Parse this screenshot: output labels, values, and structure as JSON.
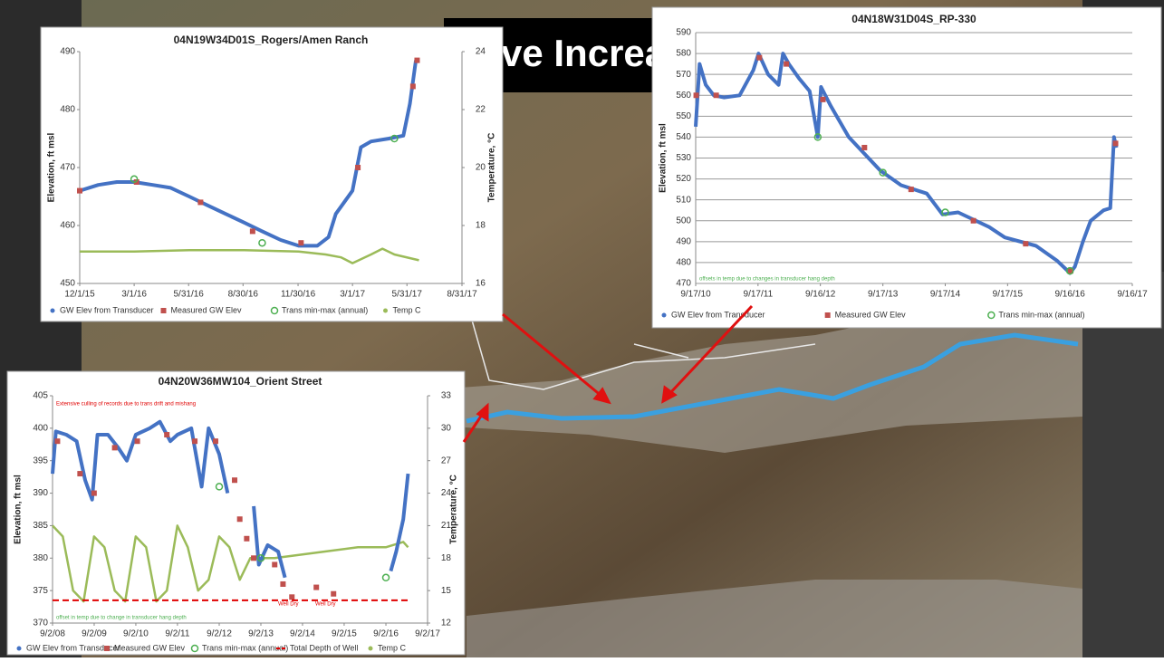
{
  "slide_title": "ve Increa",
  "chart_data": [
    {
      "type": "line",
      "title": "04N19W34D01S_Rogers/Amen Ranch",
      "ylabel": "Elevation, ft  msl",
      "y2label": "Temperature, °C",
      "xlim": [
        "2015-12-01",
        "2017-08-31"
      ],
      "xticks": [
        {
          "value": "2015-12-01",
          "label": "12/1/15"
        },
        {
          "value": "2016-03-01",
          "label": "3/1/16"
        },
        {
          "value": "2016-05-31",
          "label": "5/31/16"
        },
        {
          "value": "2016-08-30",
          "label": "8/30/16"
        },
        {
          "value": "2016-11-30",
          "label": "11/30/16"
        },
        {
          "value": "2017-03-01",
          "label": "3/1/17"
        },
        {
          "value": "2017-05-31",
          "label": "5/31/17"
        },
        {
          "value": "2017-08-31",
          "label": "8/31/17"
        }
      ],
      "ylim": [
        450,
        490
      ],
      "yticks": [
        450,
        460,
        470,
        480,
        490
      ],
      "y2lim": [
        16,
        24
      ],
      "y2ticks": [
        16,
        18,
        20,
        22,
        24
      ],
      "grid": false,
      "series": [
        {
          "name": "GW Elev from Transducer",
          "color": "#4472c4",
          "marker": "line",
          "x": [
            "2015-12-01",
            "2016-01-01",
            "2016-02-01",
            "2016-03-01",
            "2016-04-01",
            "2016-05-01",
            "2016-06-01",
            "2016-07-01",
            "2016-08-01",
            "2016-09-01",
            "2016-10-01",
            "2016-11-01",
            "2016-12-01",
            "2017-01-01",
            "2017-01-20",
            "2017-02-01",
            "2017-02-15",
            "2017-03-01",
            "2017-03-15",
            "2017-04-01",
            "2017-05-01",
            "2017-05-25",
            "2017-06-05",
            "2017-06-15"
          ],
          "values": [
            466,
            467,
            467.5,
            467.5,
            467,
            466.5,
            465,
            463.5,
            462,
            460.5,
            459,
            457.5,
            456.5,
            456.5,
            458,
            462,
            464,
            466,
            473.5,
            474.5,
            475,
            475.5,
            481,
            488.5
          ]
        },
        {
          "name": "Measured GW Elev",
          "color": "#c0504d",
          "marker": "square",
          "x": [
            "2015-12-01",
            "2016-03-05",
            "2016-06-20",
            "2016-09-15",
            "2016-12-05",
            "2017-03-10",
            "2017-06-10",
            "2017-06-17"
          ],
          "values": [
            466,
            467.5,
            464,
            459,
            457,
            470,
            484,
            488.5
          ]
        },
        {
          "name": "Trans min-max (annual)",
          "color": "#4caf50",
          "marker": "circle",
          "x": [
            "2016-03-01",
            "2016-10-01",
            "2017-05-10"
          ],
          "values": [
            468,
            457,
            475
          ]
        },
        {
          "name": "Temp C",
          "color": "#9bbb59",
          "marker": "line",
          "axis": "y2",
          "x": [
            "2015-12-01",
            "2016-03-01",
            "2016-06-01",
            "2016-09-01",
            "2016-12-01",
            "2017-01-15",
            "2017-02-10",
            "2017-03-01",
            "2017-04-01",
            "2017-04-20",
            "2017-05-10",
            "2017-06-20"
          ],
          "values": [
            17.1,
            17.1,
            17.15,
            17.15,
            17.1,
            17.0,
            16.9,
            16.7,
            17.0,
            17.2,
            17.0,
            16.8
          ]
        }
      ]
    },
    {
      "type": "line",
      "title": "04N18W31D04S_RP-330",
      "ylabel": "Elevation, ft  msl",
      "xlim": [
        "2010-09-17",
        "2017-09-16"
      ],
      "xticks": [
        {
          "value": "2010-09-17",
          "label": "9/17/10"
        },
        {
          "value": "2011-09-17",
          "label": "9/17/11"
        },
        {
          "value": "2012-09-16",
          "label": "9/16/12"
        },
        {
          "value": "2013-09-17",
          "label": "9/17/13"
        },
        {
          "value": "2014-09-17",
          "label": "9/17/14"
        },
        {
          "value": "2015-09-17",
          "label": "9/17/15"
        },
        {
          "value": "2016-09-16",
          "label": "9/16/16"
        },
        {
          "value": "2017-09-16",
          "label": "9/16/17"
        }
      ],
      "ylim": [
        470,
        590
      ],
      "yticks": [
        470,
        480,
        490,
        500,
        510,
        520,
        530,
        540,
        550,
        560,
        570,
        580,
        590
      ],
      "grid": true,
      "annotations": [
        "offsets in temp due to changes in transducer hang depth"
      ],
      "series": [
        {
          "name": "GW Elev from Transducer",
          "color": "#4472c4",
          "marker": "line",
          "x": [
            "2010-09-17",
            "2010-10-10",
            "2010-11-15",
            "2011-01-01",
            "2011-03-01",
            "2011-06-01",
            "2011-08-20",
            "2011-09-20",
            "2011-11-15",
            "2012-01-15",
            "2012-02-10",
            "2012-03-15",
            "2012-05-15",
            "2012-07-15",
            "2012-09-01",
            "2012-09-20",
            "2012-11-15",
            "2013-03-01",
            "2013-09-01",
            "2014-01-01",
            "2014-06-01",
            "2014-09-01",
            "2014-12-01",
            "2015-06-01",
            "2015-09-01",
            "2016-03-01",
            "2016-07-01",
            "2016-09-16",
            "2016-10-15",
            "2016-12-01",
            "2017-01-15",
            "2017-04-01",
            "2017-05-10",
            "2017-06-01",
            "2017-06-15"
          ],
          "values": [
            545,
            575,
            565,
            560,
            559,
            560,
            572,
            580,
            570,
            565,
            580,
            575,
            568,
            562,
            540,
            564,
            555,
            540,
            524,
            517,
            513,
            503,
            504,
            497,
            492,
            488,
            481,
            475,
            478,
            490,
            500,
            505,
            506,
            540,
            535
          ]
        },
        {
          "name": "Measured GW Elev",
          "color": "#c0504d",
          "marker": "square",
          "x": [
            "2010-09-20",
            "2011-01-15",
            "2011-09-25",
            "2012-03-01",
            "2012-10-01",
            "2013-06-01",
            "2014-03-01",
            "2015-03-01",
            "2016-01-01",
            "2016-09-20",
            "2017-06-10"
          ],
          "values": [
            560,
            560,
            578,
            575,
            558,
            535,
            515,
            500,
            489,
            476,
            537
          ]
        },
        {
          "name": "Trans min-max (annual)",
          "color": "#4caf50",
          "marker": "circle",
          "x": [
            "2012-09-01",
            "2013-09-17",
            "2014-09-17",
            "2016-09-16"
          ],
          "values": [
            540,
            523,
            504,
            476
          ]
        }
      ]
    },
    {
      "type": "line",
      "title": "04N20W36MW104_Orient Street",
      "ylabel": "Elevation, ft  msl",
      "y2label": "Temperature, °C",
      "xlim": [
        "2008-09-02",
        "2017-09-02"
      ],
      "xticks": [
        {
          "value": "2008-09-02",
          "label": "9/2/08"
        },
        {
          "value": "2009-09-02",
          "label": "9/2/09"
        },
        {
          "value": "2010-09-02",
          "label": "9/2/10"
        },
        {
          "value": "2011-09-02",
          "label": "9/2/11"
        },
        {
          "value": "2012-09-02",
          "label": "9/2/12"
        },
        {
          "value": "2013-09-02",
          "label": "9/2/13"
        },
        {
          "value": "2014-09-02",
          "label": "9/2/14"
        },
        {
          "value": "2015-09-02",
          "label": "9/2/15"
        },
        {
          "value": "2016-09-02",
          "label": "9/2/16"
        },
        {
          "value": "2017-09-02",
          "label": "9/2/17"
        }
      ],
      "ylim": [
        370,
        405
      ],
      "yticks": [
        370,
        375,
        380,
        385,
        390,
        395,
        400,
        405
      ],
      "y2lim": [
        12,
        33
      ],
      "y2ticks": [
        12,
        15,
        18,
        21,
        24,
        27,
        30,
        33
      ],
      "grid": false,
      "annotations": [
        "Extensive culling of records due to trans drift and mishang",
        "Well Dry",
        "Well Dry",
        "offset in temp due to change in transducer hang depth"
      ],
      "series": [
        {
          "name": "GW Elev from Transducer",
          "color": "#4472c4",
          "marker": "line",
          "x": [
            "2008-09-02",
            "2008-10-01",
            "2009-01-01",
            "2009-04-01",
            "2009-06-15",
            "2009-08-15",
            "2009-10-01",
            "2010-01-01",
            "2010-04-01",
            "2010-06-15",
            "2010-09-02",
            "2011-01-01",
            "2011-04-01",
            "2011-07-01",
            "2011-09-02",
            "2012-01-01",
            "2012-04-01",
            "2012-06-01",
            "2012-09-02",
            "2012-11-15",
            "2013-01-01",
            "2013-07-01",
            "2013-08-15",
            "2013-11-01",
            "2014-02-01",
            "2014-04-01",
            "2014-06-01",
            "2016-10-15",
            "2016-12-01",
            "2017-02-01",
            "2017-03-15"
          ],
          "values": [
            393,
            399.5,
            399,
            398,
            392,
            389,
            399,
            399,
            397,
            395,
            399,
            400,
            401,
            398,
            399,
            400,
            391,
            400,
            396,
            390,
            null,
            388,
            379,
            382,
            381,
            377,
            null,
            378,
            381,
            386,
            393
          ]
        },
        {
          "name": "Measured GW Elev",
          "color": "#c0504d",
          "marker": "square",
          "x": [
            "2008-10-15",
            "2009-05-01",
            "2009-09-01",
            "2010-03-01",
            "2010-09-15",
            "2011-06-01",
            "2012-02-01",
            "2012-08-01",
            "2013-01-15",
            "2013-03-01",
            "2013-05-01",
            "2013-07-01",
            "2014-01-01",
            "2014-03-15",
            "2014-06-01",
            "2015-01-01",
            "2015-06-01"
          ],
          "values": [
            398,
            393,
            390,
            397,
            398,
            399,
            398,
            398,
            392,
            386,
            383,
            380,
            379,
            376,
            374,
            375.5,
            374.5
          ]
        },
        {
          "name": "Trans min-max (annual)",
          "color": "#4caf50",
          "marker": "circle",
          "x": [
            "2012-09-02",
            "2013-09-02",
            "2016-09-02"
          ],
          "values": [
            391,
            380,
            377
          ]
        },
        {
          "name": "Total Depth of Well",
          "color": "#e00000",
          "marker": "dash",
          "x": [
            "2008-09-02",
            "2017-03-15"
          ],
          "values": [
            373.5,
            373.5
          ]
        },
        {
          "name": "Temp C",
          "color": "#9bbb59",
          "marker": "line",
          "axis": "y2",
          "x": [
            "2008-09-02",
            "2008-12-01",
            "2009-03-01",
            "2009-06-01",
            "2009-09-01",
            "2009-12-01",
            "2010-03-01",
            "2010-06-01",
            "2010-09-01",
            "2010-12-01",
            "2011-03-01",
            "2011-06-01",
            "2011-09-01",
            "2011-12-01",
            "2012-03-01",
            "2012-06-01",
            "2012-09-01",
            "2012-12-01",
            "2013-03-01",
            "2013-06-01",
            "2014-01-01",
            "2015-01-01",
            "2016-01-01",
            "2016-09-01",
            "2017-02-01",
            "2017-03-15"
          ],
          "values": [
            21,
            20,
            15,
            14,
            20,
            19,
            15,
            14,
            20,
            19,
            14,
            15,
            21,
            19,
            15,
            16,
            20,
            19,
            16,
            18,
            18,
            18.5,
            19,
            19,
            19.5,
            19
          ]
        }
      ]
    }
  ]
}
